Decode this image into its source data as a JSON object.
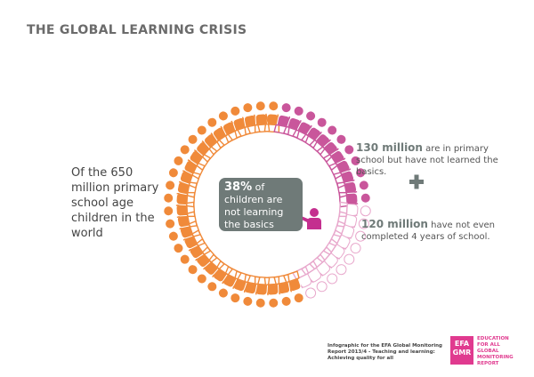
{
  "header": {
    "title": "THE GLOBAL LEARNING CRISIS"
  },
  "intro": "Of the 650 million primary school age children in the world",
  "center": {
    "highlight": "38%",
    "text": "of children are not learning the basics"
  },
  "groups": [
    {
      "highlight": "130 million",
      "text": "are in primary school but have not learned the basics."
    },
    {
      "highlight": "120 million",
      "text": "have not even completed 4 years of school."
    }
  ],
  "footer": {
    "credit": "Infographic for the EFA Global Monitoring Report 2013/4 - Teaching and learning: Achieving quality for all",
    "logo": "EFA GMR",
    "logo_text": "EDUCATION FOR ALL GLOBAL MONITORING REPORT"
  }
}
